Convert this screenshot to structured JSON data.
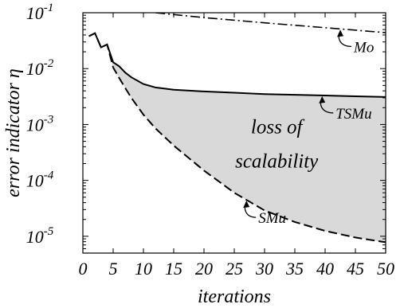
{
  "chart_data": {
    "type": "line",
    "xlabel": "iterations",
    "ylabel": "error indicator η",
    "x_scale": "linear",
    "y_scale": "log",
    "xlim": [
      0,
      50
    ],
    "ylim": [
      5e-06,
      0.1
    ],
    "x_ticks": [
      0,
      5,
      10,
      15,
      20,
      25,
      30,
      35,
      40,
      45,
      50
    ],
    "y_ticks": [
      {
        "value": 1e-05,
        "label": "10^-5",
        "base": "10",
        "exp": "-5"
      },
      {
        "value": 0.0001,
        "label": "10^-4",
        "base": "10",
        "exp": "-4"
      },
      {
        "value": 0.001,
        "label": "10^-3",
        "base": "10",
        "exp": "-3"
      },
      {
        "value": 0.01,
        "label": "10^-2",
        "base": "10",
        "exp": "-2"
      },
      {
        "value": 0.1,
        "label": "10^-1",
        "base": "10",
        "exp": "-1"
      }
    ],
    "grid": false,
    "series": [
      {
        "name": "Mo",
        "style": "dash-dot",
        "x": [
          12,
          20,
          30,
          40,
          50
        ],
        "y": [
          0.1,
          0.082,
          0.066,
          0.054,
          0.044
        ]
      },
      {
        "name": "TSMu",
        "style": "solid",
        "x": [
          1,
          2,
          3,
          4,
          5,
          6,
          7,
          8,
          10,
          12,
          15,
          20,
          25,
          30,
          35,
          40,
          45,
          50
        ],
        "y": [
          0.038,
          0.043,
          0.024,
          0.027,
          0.013,
          0.011,
          0.0085,
          0.007,
          0.0053,
          0.0046,
          0.0042,
          0.0039,
          0.0037,
          0.0035,
          0.0034,
          0.0033,
          0.0032,
          0.0031
        ]
      },
      {
        "name": "SMu",
        "style": "dashed",
        "x": [
          1,
          2,
          3,
          4,
          5,
          6,
          7,
          8,
          10,
          12,
          15,
          20,
          25,
          30,
          35,
          40,
          45,
          50
        ],
        "y": [
          0.038,
          0.043,
          0.024,
          0.027,
          0.0105,
          0.0068,
          0.0045,
          0.003,
          0.0015,
          0.00085,
          0.00042,
          0.00015,
          6e-05,
          2.9e-05,
          1.8e-05,
          1.25e-05,
          9.5e-06,
          7.8e-06
        ]
      }
    ],
    "shaded_region": {
      "between": [
        "TSMu",
        "SMu"
      ],
      "label_line1": "loss of",
      "label_line2": "scalability",
      "color": "#d9d9d9"
    },
    "annotations": [
      {
        "text": "Mo",
        "series": "Mo"
      },
      {
        "text": "TSMu",
        "series": "TSMu"
      },
      {
        "text": "SMu",
        "series": "SMu"
      }
    ]
  }
}
